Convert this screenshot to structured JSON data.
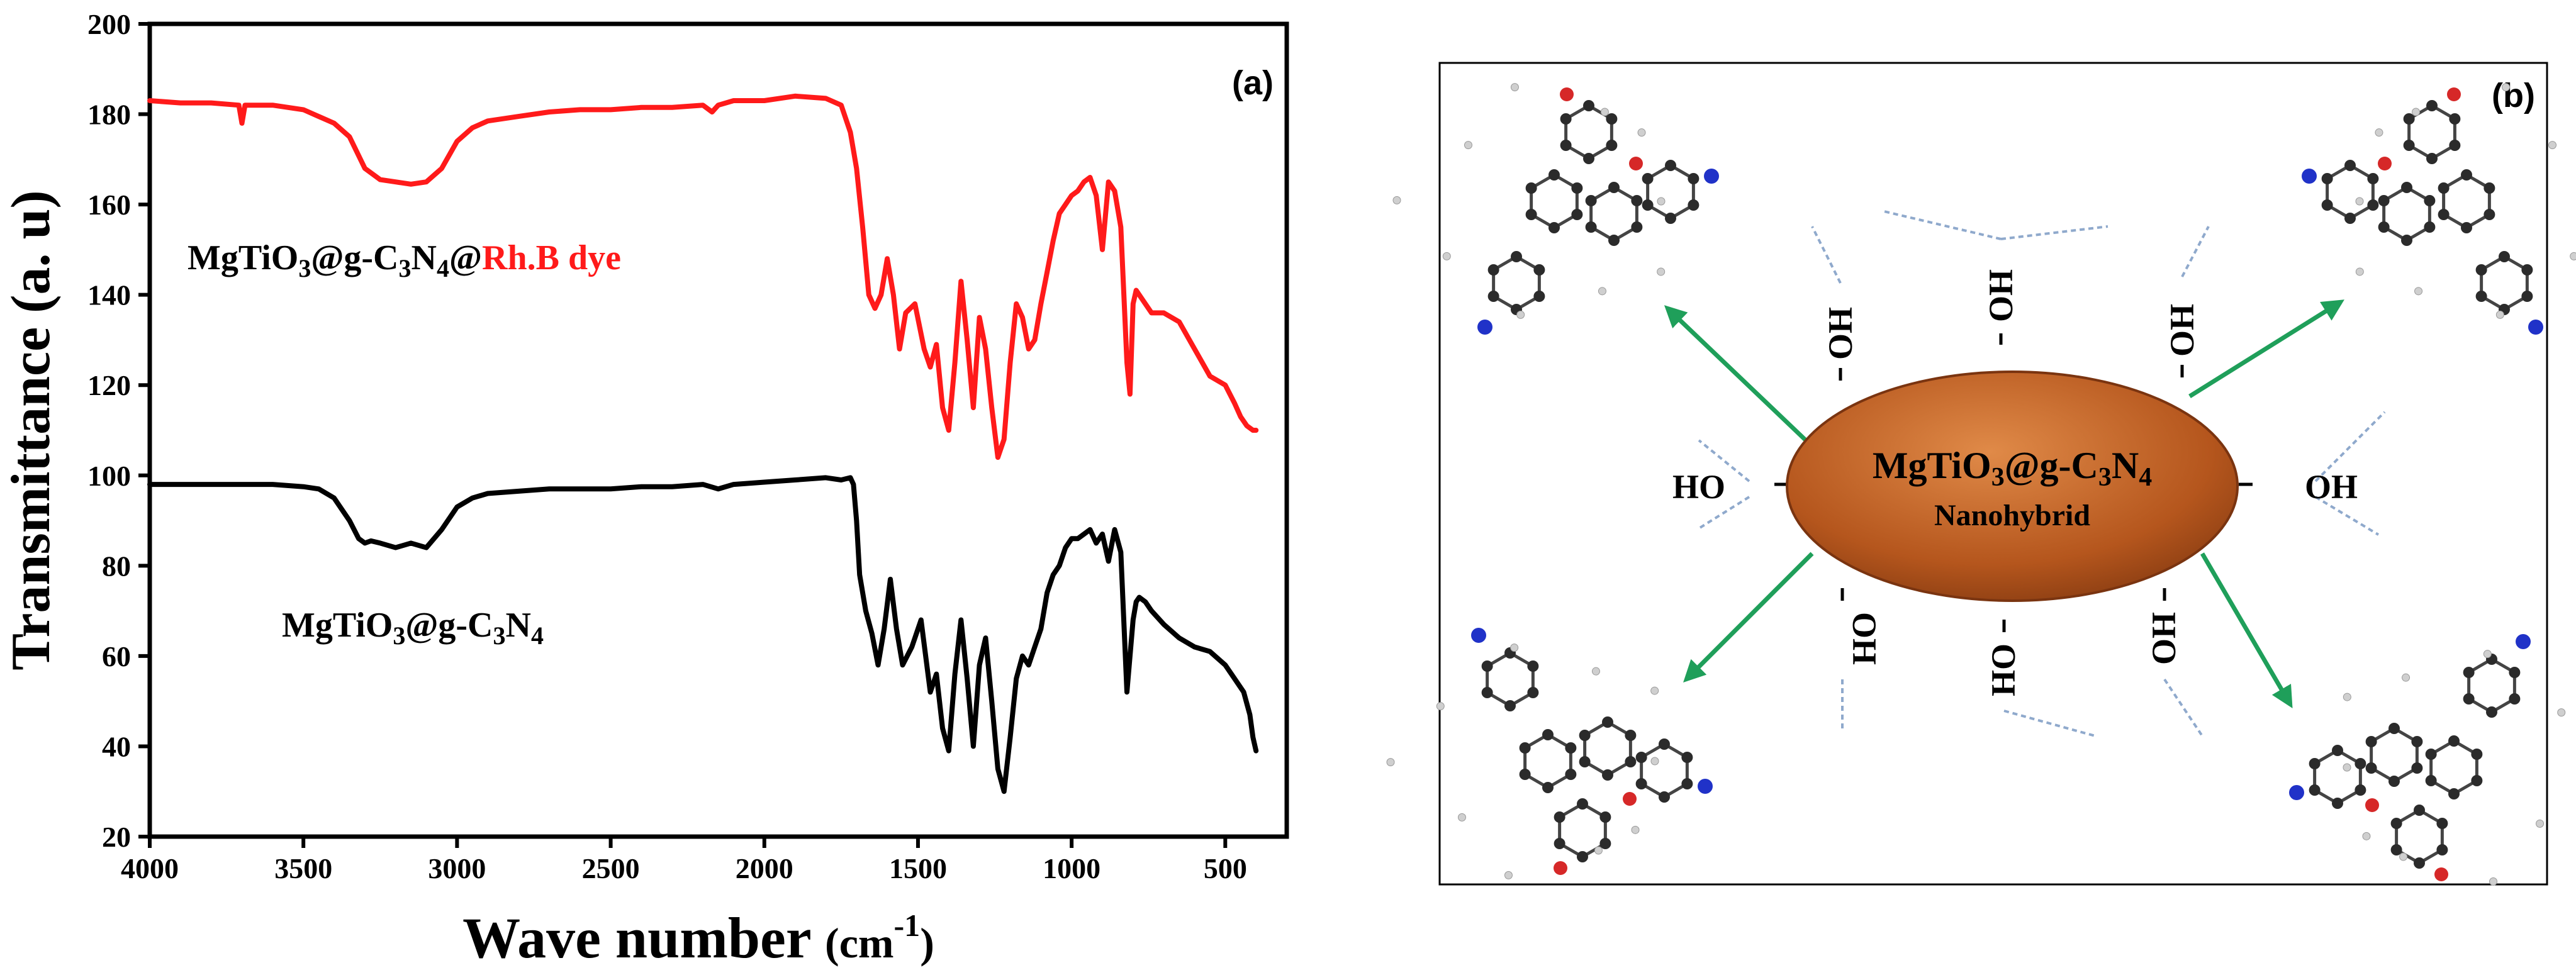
{
  "chart_data": {
    "type": "line",
    "panel_label": "(a)",
    "xlabel_main": "Wave number ",
    "xlabel_unit": "(cm",
    "xlabel_exp": "-1",
    "xlabel_close": ")",
    "ylabel": "Transmittance (a. u)",
    "xlim": [
      4000,
      300
    ],
    "ylim": [
      20,
      200
    ],
    "x_ticks": [
      4000,
      3500,
      3000,
      2500,
      2000,
      1500,
      1000,
      500
    ],
    "y_ticks": [
      20,
      40,
      60,
      80,
      100,
      120,
      140,
      160,
      180,
      200
    ],
    "series": [
      {
        "name": "MgTiO3@g-C3N4@Rh.B dye",
        "label_black_1": "MgTiO",
        "label_sub_1": "3",
        "label_black_2": "@g-C",
        "label_sub_2": "3",
        "label_black_3": "N",
        "label_sub_3": "4",
        "label_black_4": "@",
        "label_red": "Rh.B dye",
        "color": "#ff1a1a",
        "x": [
          4000,
          3900,
          3800,
          3710,
          3700,
          3690,
          3600,
          3500,
          3400,
          3350,
          3300,
          3250,
          3200,
          3150,
          3100,
          3050,
          3000,
          2950,
          2900,
          2800,
          2700,
          2600,
          2500,
          2400,
          2300,
          2200,
          2170,
          2150,
          2100,
          2000,
          1900,
          1800,
          1750,
          1720,
          1700,
          1680,
          1660,
          1640,
          1620,
          1600,
          1580,
          1560,
          1540,
          1510,
          1480,
          1460,
          1440,
          1420,
          1400,
          1380,
          1360,
          1340,
          1320,
          1300,
          1280,
          1260,
          1240,
          1220,
          1200,
          1180,
          1160,
          1140,
          1120,
          1100,
          1080,
          1060,
          1040,
          1020,
          1000,
          980,
          960,
          940,
          920,
          900,
          880,
          860,
          840,
          820,
          810,
          800,
          790,
          780,
          760,
          740,
          700,
          650,
          600,
          550,
          500,
          470,
          450,
          430,
          410,
          400
        ],
        "y": [
          183,
          182.5,
          182.5,
          182,
          178,
          182,
          182,
          181,
          178,
          175,
          168,
          165.5,
          165,
          164.5,
          165,
          168,
          174,
          177,
          178.5,
          179.5,
          180.5,
          181,
          181,
          181.5,
          181.5,
          182,
          180.5,
          182,
          183,
          183,
          184,
          183.5,
          182,
          176,
          168,
          155,
          140,
          137,
          140,
          148,
          140,
          128,
          136,
          138,
          128,
          124,
          129,
          115,
          110,
          125,
          143,
          130,
          115,
          135,
          128,
          115,
          104,
          108,
          125,
          138,
          135,
          128,
          130,
          138,
          145,
          152,
          158,
          160,
          162,
          163,
          165,
          166,
          162,
          150,
          165,
          163,
          155,
          125,
          118,
          138,
          141,
          140,
          138,
          136,
          136,
          134,
          128,
          122,
          120,
          116,
          113,
          111,
          110,
          110
        ]
      },
      {
        "name": "MgTiO3@g-C3N4",
        "label_black_1": "MgTiO",
        "label_sub_1": "3",
        "label_black_2": "@g-C",
        "label_sub_2": "3",
        "label_black_3": "N",
        "label_sub_3": "4",
        "color": "#000000",
        "x": [
          4000,
          3900,
          3800,
          3700,
          3600,
          3500,
          3450,
          3400,
          3350,
          3320,
          3300,
          3280,
          3250,
          3200,
          3150,
          3100,
          3050,
          3000,
          2950,
          2900,
          2800,
          2700,
          2600,
          2500,
          2400,
          2300,
          2200,
          2150,
          2100,
          2000,
          1900,
          1800,
          1750,
          1720,
          1710,
          1700,
          1690,
          1670,
          1650,
          1630,
          1610,
          1590,
          1570,
          1550,
          1520,
          1490,
          1460,
          1440,
          1420,
          1400,
          1380,
          1360,
          1340,
          1320,
          1300,
          1280,
          1260,
          1240,
          1220,
          1200,
          1180,
          1160,
          1140,
          1120,
          1100,
          1080,
          1060,
          1040,
          1020,
          1000,
          980,
          960,
          940,
          920,
          900,
          880,
          860,
          840,
          820,
          810,
          800,
          790,
          780,
          760,
          740,
          700,
          650,
          600,
          550,
          500,
          470,
          440,
          420,
          410,
          400
        ],
        "y": [
          98,
          98,
          98,
          98,
          98,
          97.5,
          97,
          95,
          90,
          86,
          85,
          85.5,
          85,
          84,
          85,
          84,
          88,
          93,
          95,
          96,
          96.5,
          97,
          97,
          97,
          97.5,
          97.5,
          98,
          97,
          98,
          98.5,
          99,
          99.5,
          99,
          99.5,
          98,
          90,
          78,
          70,
          65,
          58,
          66,
          77,
          66,
          58,
          62,
          68,
          52,
          56,
          44,
          39,
          56,
          68,
          55,
          40,
          58,
          64,
          50,
          35,
          30,
          42,
          55,
          60,
          58,
          62,
          66,
          74,
          78,
          80,
          84,
          86,
          86,
          87,
          88,
          85,
          87,
          81,
          88,
          83,
          52,
          60,
          68,
          72,
          73,
          72,
          70,
          67,
          64,
          62,
          61,
          58,
          55,
          52,
          47,
          42,
          39
        ]
      }
    ]
  },
  "panel_b": {
    "panel_label": "(b)",
    "core_main": "MgTiO",
    "core_sub1": "3",
    "core_mid": "@g-C",
    "core_sub2": "3",
    "core_n": "N",
    "core_sub3": "4",
    "core_caption": "Nanohybrid",
    "oh_groups": [
      "HO",
      "OH",
      "-OH",
      "OH",
      "OH",
      "HO",
      "OH",
      "OH"
    ]
  }
}
